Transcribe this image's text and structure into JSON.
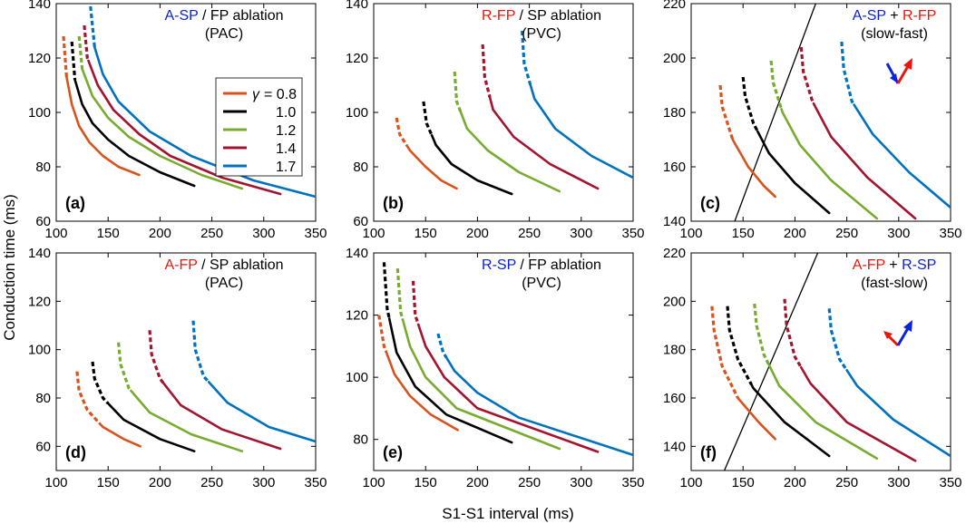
{
  "figure": {
    "ylabel": "Conduction time (ms)",
    "xlabel": "S1-S1 interval (ms)"
  },
  "colors": {
    "g08": "#d9531e",
    "g10": "#000000",
    "g12": "#77ac30",
    "g14": "#a2142f",
    "g17": "#0072bd",
    "red": "#e8160c",
    "blue": "#0b22d6",
    "line": "#000000"
  },
  "legend": {
    "symbol": "γ",
    "entries": [
      {
        "key": "g08",
        "label": "= 0.8"
      },
      {
        "key": "g10",
        "label": "1.0"
      },
      {
        "key": "g12",
        "label": "1.2"
      },
      {
        "key": "g14",
        "label": "1.4"
      },
      {
        "key": "g17",
        "label": "1.7"
      }
    ]
  },
  "chart_data": [
    {
      "id": "a",
      "letter": "(a)",
      "type": "line",
      "title": {
        "parts": [
          {
            "text": "A-SP",
            "color": "blue"
          },
          {
            "text": " / FP ablation",
            "color": "black"
          }
        ],
        "sub": "(PAC)"
      },
      "xlim": [
        100,
        350
      ],
      "ylim": [
        60,
        140
      ],
      "xticks": [
        100,
        150,
        200,
        250,
        300,
        350
      ],
      "yticks": [
        60,
        80,
        100,
        120,
        140
      ],
      "series": [
        {
          "key": "g08",
          "name": "γ = 0.8",
          "x": [
            107,
            110,
            115,
            122,
            132,
            145,
            160,
            180
          ],
          "y": [
            128,
            113,
            103,
            95,
            89,
            84,
            80,
            77
          ],
          "dashed_until": 110
        },
        {
          "key": "g10",
          "name": "γ = 1.0",
          "x": [
            115,
            118,
            125,
            135,
            150,
            170,
            200,
            233
          ],
          "y": [
            126,
            112,
            103,
            96,
            90,
            84,
            78,
            73
          ],
          "dashed_until": 118
        },
        {
          "key": "g12",
          "name": "γ = 1.2",
          "x": [
            122,
            125,
            135,
            150,
            170,
            200,
            240,
            279
          ],
          "y": [
            128,
            116,
            106,
            98,
            91,
            84,
            77,
            72
          ],
          "dashed_until": 125
        },
        {
          "key": "g14",
          "name": "γ = 1.4",
          "x": [
            127,
            130,
            140,
            155,
            180,
            210,
            260,
            316
          ],
          "y": [
            132,
            120,
            110,
            101,
            92,
            84,
            76,
            70
          ],
          "dashed_until": 131
        },
        {
          "key": "g17",
          "name": "γ = 1.7",
          "x": [
            133,
            137,
            145,
            160,
            190,
            230,
            290,
            350
          ],
          "y": [
            139,
            124,
            114,
            104,
            93,
            84,
            75,
            69
          ],
          "dashed_until": 137
        }
      ]
    },
    {
      "id": "b",
      "letter": "(b)",
      "type": "line",
      "title": {
        "parts": [
          {
            "text": "R-FP",
            "color": "red"
          },
          {
            "text": " / SP ablation",
            "color": "black"
          }
        ],
        "sub": "(PVC)"
      },
      "xlim": [
        100,
        350
      ],
      "ylim": [
        60,
        140
      ],
      "xticks": [
        100,
        150,
        200,
        250,
        300,
        350
      ],
      "yticks": [
        60,
        80,
        100,
        120,
        140
      ],
      "series": [
        {
          "key": "g08",
          "name": "γ = 0.8",
          "x": [
            122,
            125,
            135,
            150,
            165,
            180
          ],
          "y": [
            98,
            92,
            86,
            80,
            75,
            72
          ],
          "dashed_until": 132
        },
        {
          "key": "g10",
          "name": "γ = 1.0",
          "x": [
            148,
            151,
            160,
            175,
            200,
            233
          ],
          "y": [
            104,
            96,
            88,
            81,
            75,
            70
          ],
          "dashed_until": 156
        },
        {
          "key": "g12",
          "name": "γ = 1.2",
          "x": [
            178,
            180,
            190,
            210,
            240,
            279
          ],
          "y": [
            115,
            104,
            94,
            86,
            78,
            71
          ],
          "dashed_until": 184
        },
        {
          "key": "g14",
          "name": "γ = 1.4",
          "x": [
            205,
            207,
            215,
            235,
            270,
            316
          ],
          "y": [
            125,
            113,
            101,
            91,
            81,
            72
          ],
          "dashed_until": 212
        },
        {
          "key": "g17",
          "name": "γ = 1.7",
          "x": [
            243,
            245,
            255,
            275,
            310,
            350
          ],
          "y": [
            130,
            118,
            105,
            94,
            84,
            76
          ],
          "dashed_until": 251
        }
      ]
    },
    {
      "id": "c",
      "letter": "(c)",
      "type": "line",
      "title": {
        "parts": [
          {
            "text": "A-SP",
            "color": "blue"
          },
          {
            "text": " + ",
            "color": "black"
          },
          {
            "text": "R-FP",
            "color": "red"
          }
        ],
        "sub": "(slow-fast)"
      },
      "xlim": [
        100,
        350
      ],
      "ylim": [
        140,
        220
      ],
      "xticks": [
        100,
        150,
        200,
        250,
        300,
        350
      ],
      "yticks": [
        140,
        160,
        180,
        200,
        220
      ],
      "diagonal": {
        "x": [
          142,
          220
        ],
        "y": [
          140,
          220
        ]
      },
      "series": [
        {
          "key": "g08",
          "name": "γ = 0.8",
          "x": [
            128,
            130,
            140,
            155,
            170,
            181
          ],
          "y": [
            190,
            182,
            170,
            160,
            153,
            149
          ],
          "dashed_until": 140
        },
        {
          "key": "g10",
          "name": "γ = 1.0",
          "x": [
            150,
            152,
            160,
            175,
            200,
            233
          ],
          "y": [
            193,
            186,
            176,
            165,
            154,
            143
          ],
          "dashed_until": 164
        },
        {
          "key": "g12",
          "name": "γ = 1.2",
          "x": [
            177,
            179,
            188,
            205,
            235,
            279
          ],
          "y": [
            199,
            191,
            180,
            168,
            155,
            141
          ],
          "dashed_until": 187
        },
        {
          "key": "g14",
          "name": "γ = 1.4",
          "x": [
            206,
            208,
            217,
            235,
            270,
            316
          ],
          "y": [
            204,
            195,
            184,
            171,
            156,
            141
          ],
          "dashed_until": 218
        },
        {
          "key": "g17",
          "name": "γ = 1.7",
          "x": [
            245,
            247,
            255,
            275,
            310,
            350
          ],
          "y": [
            206,
            196,
            184,
            172,
            158,
            145
          ],
          "dashed_until": 257
        }
      ]
    },
    {
      "id": "d",
      "letter": "(d)",
      "type": "line",
      "title": {
        "parts": [
          {
            "text": "A-FP",
            "color": "red"
          },
          {
            "text": " / SP ablation",
            "color": "black"
          }
        ],
        "sub": "(PAC)"
      },
      "xlim": [
        100,
        350
      ],
      "ylim": [
        50,
        140
      ],
      "xticks": [
        100,
        150,
        200,
        250,
        300,
        350
      ],
      "yticks": [
        60,
        80,
        100,
        120,
        140
      ],
      "series": [
        {
          "key": "g08",
          "name": "γ = 0.8",
          "x": [
            120,
            122,
            130,
            145,
            165,
            181
          ],
          "y": [
            91,
            83,
            75,
            68,
            63,
            60
          ],
          "dashed_until": 142
        },
        {
          "key": "g10",
          "name": "γ = 1.0",
          "x": [
            135,
            137,
            145,
            165,
            200,
            233
          ],
          "y": [
            95,
            88,
            80,
            71,
            63,
            58
          ],
          "dashed_until": 150
        },
        {
          "key": "g12",
          "name": "γ = 1.2",
          "x": [
            160,
            162,
            170,
            190,
            230,
            279
          ],
          "y": [
            103,
            94,
            84,
            74,
            65,
            58
          ],
          "dashed_until": 172
        },
        {
          "key": "g14",
          "name": "γ = 1.4",
          "x": [
            190,
            192,
            200,
            220,
            260,
            316
          ],
          "y": [
            108,
            98,
            88,
            77,
            67,
            59
          ],
          "dashed_until": 203
        },
        {
          "key": "g17",
          "name": "γ = 1.7",
          "x": [
            232,
            234,
            242,
            265,
            305,
            350
          ],
          "y": [
            112,
            100,
            89,
            78,
            68,
            62
          ],
          "dashed_until": 247
        }
      ]
    },
    {
      "id": "e",
      "letter": "(e)",
      "type": "line",
      "title": {
        "parts": [
          {
            "text": "R-SP",
            "color": "blue"
          },
          {
            "text": " / FP ablation",
            "color": "black"
          }
        ],
        "sub": "(PVC)"
      },
      "xlim": [
        100,
        350
      ],
      "ylim": [
        70,
        140
      ],
      "xticks": [
        100,
        150,
        200,
        250,
        300,
        350
      ],
      "yticks": [
        80,
        100,
        120,
        140
      ],
      "series": [
        {
          "key": "g08",
          "name": "γ = 0.8",
          "x": [
            105,
            110,
            120,
            135,
            155,
            181
          ],
          "y": [
            120,
            110,
            101,
            94,
            88,
            83
          ],
          "dashed_until": 112
        },
        {
          "key": "g10",
          "name": "γ = 1.0",
          "x": [
            110,
            113,
            122,
            140,
            170,
            233
          ],
          "y": [
            137,
            122,
            108,
            97,
            88,
            79
          ],
          "dashed_until": 115
        },
        {
          "key": "g12",
          "name": "γ = 1.2",
          "x": [
            123,
            126,
            135,
            150,
            180,
            279
          ],
          "y": [
            135,
            121,
            110,
            100,
            90,
            77
          ],
          "dashed_until": 128
        },
        {
          "key": "g14",
          "name": "γ = 1.4",
          "x": [
            138,
            140,
            150,
            168,
            200,
            316
          ],
          "y": [
            131,
            120,
            110,
            100,
            90,
            76
          ],
          "dashed_until": 143
        },
        {
          "key": "g17",
          "name": "γ = 1.7",
          "x": [
            162,
            167,
            178,
            200,
            240,
            350
          ],
          "y": [
            114,
            108,
            102,
            95,
            87,
            75
          ],
          "dashed_until": 170
        }
      ]
    },
    {
      "id": "f",
      "letter": "(f)",
      "type": "line",
      "title": {
        "parts": [
          {
            "text": "A-FP",
            "color": "red"
          },
          {
            "text": " + ",
            "color": "black"
          },
          {
            "text": "R-SP",
            "color": "blue"
          }
        ],
        "sub": "(fast-slow)"
      },
      "xlim": [
        100,
        350
      ],
      "ylim": [
        130,
        220
      ],
      "xticks": [
        100,
        150,
        200,
        250,
        300,
        350
      ],
      "yticks": [
        140,
        160,
        180,
        200,
        220
      ],
      "diagonal": {
        "x": [
          132,
          222
        ],
        "y": [
          130,
          220
        ]
      },
      "series": [
        {
          "key": "g08",
          "name": "γ = 0.8",
          "x": [
            120,
            122,
            130,
            145,
            165,
            181
          ],
          "y": [
            198,
            188,
            173,
            160,
            150,
            143
          ],
          "dashed_until": 145
        },
        {
          "key": "g10",
          "name": "γ = 1.0",
          "x": [
            135,
            137,
            145,
            160,
            190,
            233
          ],
          "y": [
            198,
            188,
            176,
            164,
            150,
            136
          ],
          "dashed_until": 158
        },
        {
          "key": "g12",
          "name": "γ = 1.2",
          "x": [
            161,
            163,
            170,
            185,
            220,
            279
          ],
          "y": [
            199,
            190,
            178,
            165,
            150,
            135
          ],
          "dashed_until": 175
        },
        {
          "key": "g14",
          "name": "γ = 1.4",
          "x": [
            190,
            192,
            200,
            215,
            250,
            316
          ],
          "y": [
            201,
            190,
            177,
            166,
            150,
            134
          ],
          "dashed_until": 206
        },
        {
          "key": "g17",
          "name": "γ = 1.7",
          "x": [
            233,
            235,
            243,
            260,
            295,
            350
          ],
          "y": [
            197,
            188,
            176,
            165,
            151,
            136
          ],
          "dashed_until": 250
        }
      ]
    }
  ]
}
